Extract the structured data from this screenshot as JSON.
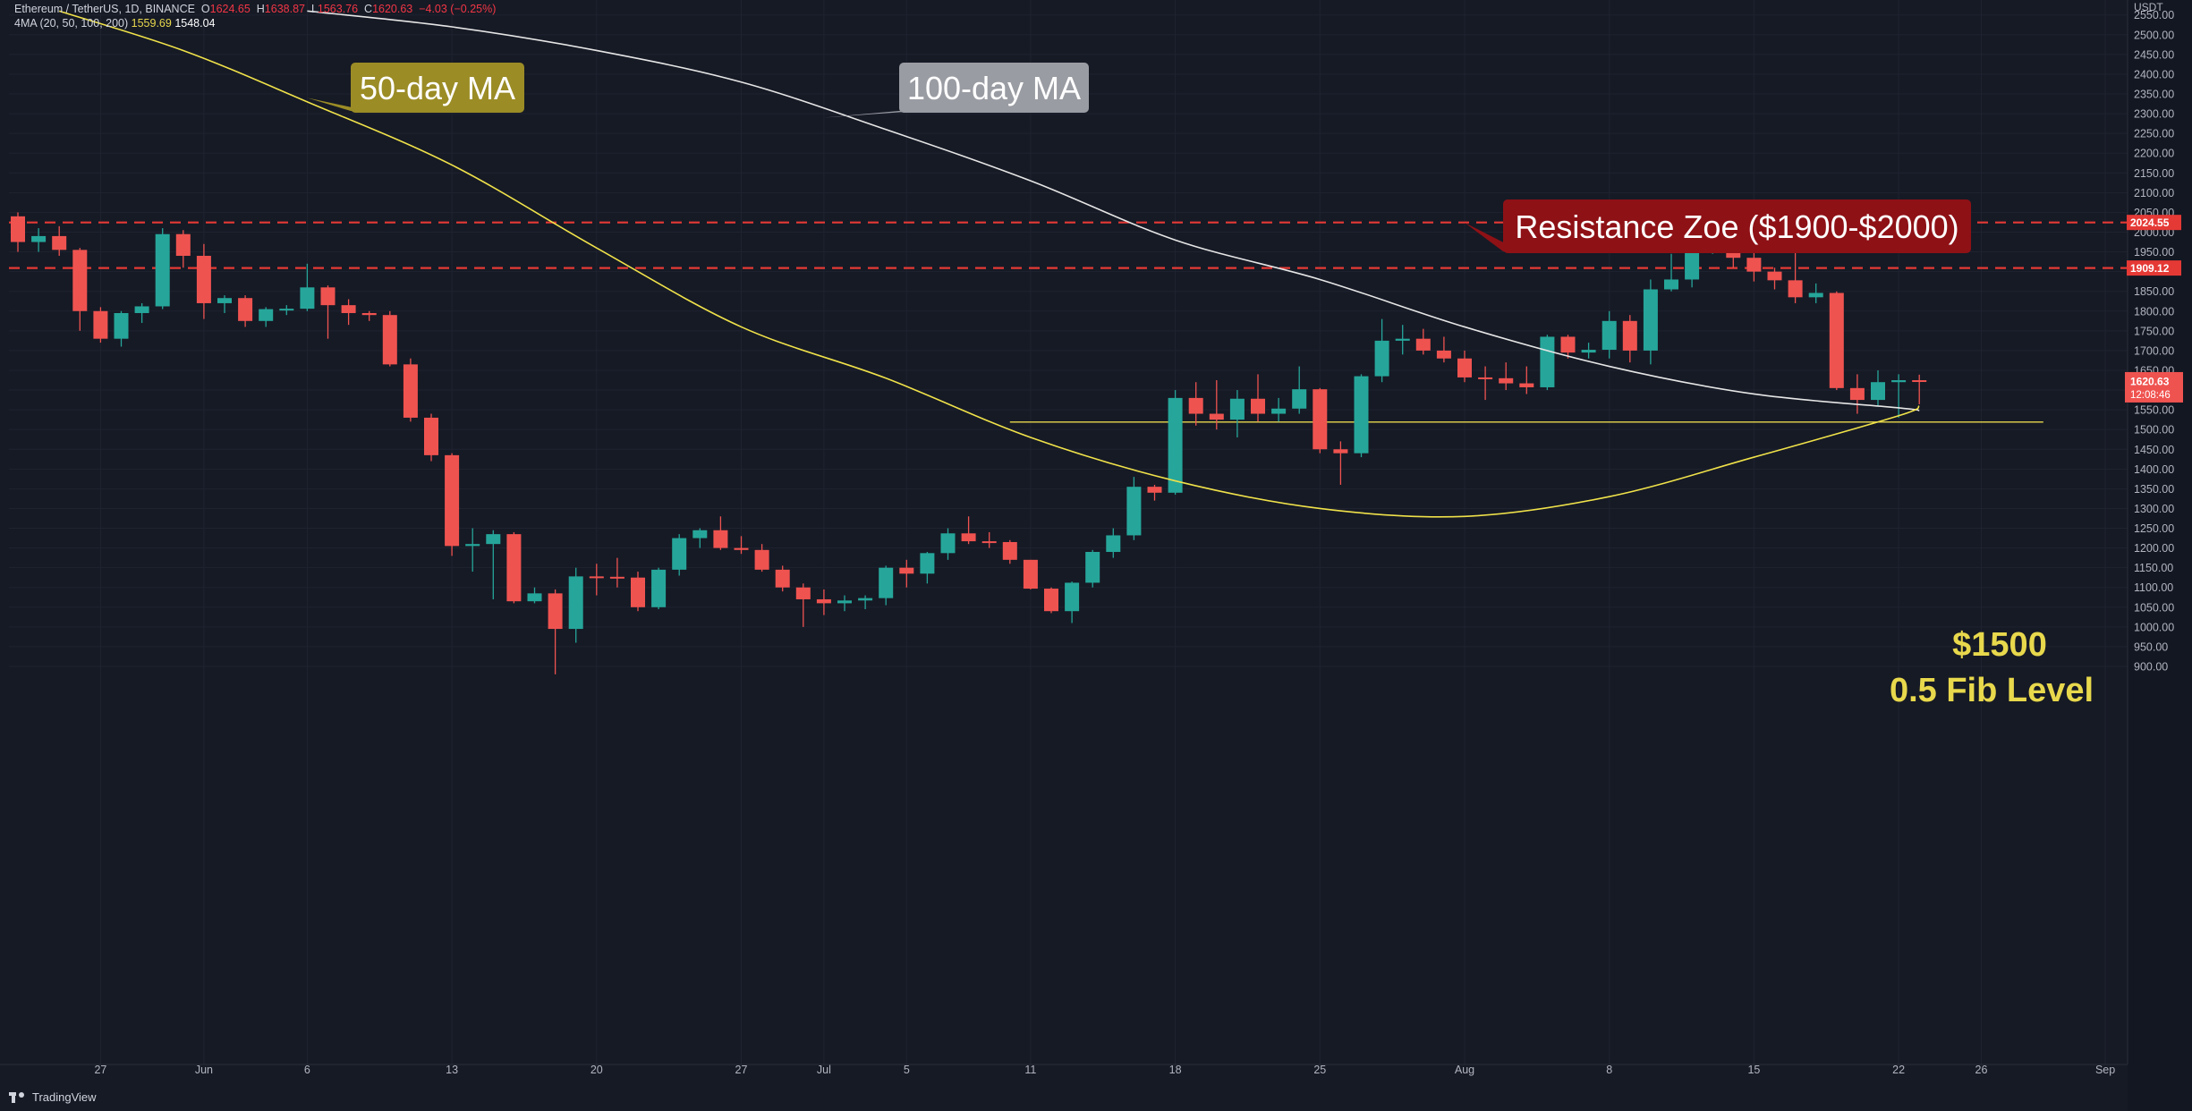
{
  "header": {
    "symbol_line_parts": {
      "symbol": "Ethereum / TetherUS, 1D, BINANCE",
      "o_label": "O",
      "o_value": "1624.65",
      "h_label": "H",
      "h_value": "1638.87",
      "l_label": "L",
      "l_value": "1563.76",
      "c_label": "C",
      "c_value": "1620.63",
      "change": "−4.03 (−0.25%)"
    },
    "indicator_line": {
      "label": "4MA (20, 50, 100, 200)",
      "value1": "1559.69",
      "value2": "1548.04"
    }
  },
  "currency_label": "USDT",
  "branding": "TradingView",
  "colors": {
    "background": "#161a25",
    "up": "#26a69a",
    "down": "#ef5350",
    "ma50": "#f0e24a",
    "ma100": "#e6e6e6",
    "resistance": "#e53935",
    "fib": "#e8d84c",
    "axis_text": "#b2b5be",
    "grid": "#1f2330"
  },
  "chart_data": {
    "type": "candlestick",
    "y_axis": {
      "range": [
        880,
        2560
      ],
      "ticks": [
        900,
        950,
        1000,
        1050,
        1100,
        1150,
        1200,
        1250,
        1300,
        1350,
        1400,
        1450,
        1500,
        1550,
        1600,
        1650,
        1700,
        1750,
        1800,
        1850,
        1900,
        1950,
        2000,
        2050,
        2100,
        2150,
        2200,
        2250,
        2300,
        2350,
        2400,
        2450,
        2500,
        2550
      ],
      "tick_labels": [
        "900.00",
        "950.00",
        "1000.00",
        "1050.00",
        "1100.00",
        "1150.00",
        "1200.00",
        "1250.00",
        "1300.00",
        "1350.00",
        "1400.00",
        "1450.00",
        "1500.00",
        "1550.00",
        "1600.00",
        "1650.00",
        "1700.00",
        "1750.00",
        "1800.00",
        "1850.00",
        "1900.00",
        "1950.00",
        "2000.00",
        "2050.00",
        "2100.00",
        "2150.00",
        "2200.00",
        "2250.00",
        "2300.00",
        "2350.00",
        "2400.00",
        "2450.00",
        "2500.00",
        "2550.00"
      ]
    },
    "x_axis": {
      "range": [
        "2022-05-23",
        "2022-09-03"
      ],
      "tick_dates": [
        "2022-05-27",
        "2022-06-01",
        "2022-06-06",
        "2022-06-13",
        "2022-06-20",
        "2022-06-27",
        "2022-07-01",
        "2022-07-05",
        "2022-07-11",
        "2022-07-18",
        "2022-07-25",
        "2022-08-01",
        "2022-08-08",
        "2022-08-15",
        "2022-08-22",
        "2022-08-26",
        "2022-09-01"
      ],
      "tick_labels": [
        "27",
        "Jun",
        "6",
        "13",
        "20",
        "27",
        "Jul",
        "5",
        "11",
        "18",
        "25",
        "Aug",
        "8",
        "15",
        "22",
        "26",
        "Sep"
      ]
    },
    "candles": [
      {
        "date": "2022-05-23",
        "o": 2040,
        "h": 2050,
        "l": 1950,
        "c": 1975
      },
      {
        "date": "2022-05-24",
        "o": 1975,
        "h": 2010,
        "l": 1950,
        "c": 1990
      },
      {
        "date": "2022-05-25",
        "o": 1990,
        "h": 2015,
        "l": 1940,
        "c": 1955
      },
      {
        "date": "2022-05-26",
        "o": 1955,
        "h": 1960,
        "l": 1750,
        "c": 1800
      },
      {
        "date": "2022-05-27",
        "o": 1800,
        "h": 1810,
        "l": 1720,
        "c": 1730
      },
      {
        "date": "2022-05-28",
        "o": 1730,
        "h": 1800,
        "l": 1710,
        "c": 1795
      },
      {
        "date": "2022-05-29",
        "o": 1795,
        "h": 1820,
        "l": 1770,
        "c": 1812
      },
      {
        "date": "2022-05-30",
        "o": 1812,
        "h": 2010,
        "l": 1805,
        "c": 1995
      },
      {
        "date": "2022-05-31",
        "o": 1995,
        "h": 2005,
        "l": 1910,
        "c": 1940
      },
      {
        "date": "2022-06-01",
        "o": 1940,
        "h": 1970,
        "l": 1780,
        "c": 1820
      },
      {
        "date": "2022-06-02",
        "o": 1820,
        "h": 1840,
        "l": 1795,
        "c": 1833
      },
      {
        "date": "2022-06-03",
        "o": 1833,
        "h": 1840,
        "l": 1760,
        "c": 1775
      },
      {
        "date": "2022-06-04",
        "o": 1775,
        "h": 1810,
        "l": 1760,
        "c": 1805
      },
      {
        "date": "2022-06-05",
        "o": 1805,
        "h": 1815,
        "l": 1790,
        "c": 1806
      },
      {
        "date": "2022-06-06",
        "o": 1806,
        "h": 1920,
        "l": 1800,
        "c": 1860
      },
      {
        "date": "2022-06-07",
        "o": 1860,
        "h": 1865,
        "l": 1730,
        "c": 1815
      },
      {
        "date": "2022-06-08",
        "o": 1815,
        "h": 1830,
        "l": 1765,
        "c": 1795
      },
      {
        "date": "2022-06-09",
        "o": 1795,
        "h": 1800,
        "l": 1775,
        "c": 1790
      },
      {
        "date": "2022-06-10",
        "o": 1790,
        "h": 1800,
        "l": 1660,
        "c": 1665
      },
      {
        "date": "2022-06-11",
        "o": 1665,
        "h": 1680,
        "l": 1520,
        "c": 1530
      },
      {
        "date": "2022-06-12",
        "o": 1530,
        "h": 1540,
        "l": 1420,
        "c": 1435
      },
      {
        "date": "2022-06-13",
        "o": 1435,
        "h": 1440,
        "l": 1180,
        "c": 1205
      },
      {
        "date": "2022-06-14",
        "o": 1205,
        "h": 1250,
        "l": 1140,
        "c": 1210
      },
      {
        "date": "2022-06-15",
        "o": 1210,
        "h": 1245,
        "l": 1070,
        "c": 1235
      },
      {
        "date": "2022-06-16",
        "o": 1235,
        "h": 1240,
        "l": 1060,
        "c": 1065
      },
      {
        "date": "2022-06-17",
        "o": 1065,
        "h": 1100,
        "l": 1060,
        "c": 1085
      },
      {
        "date": "2022-06-18",
        "o": 1085,
        "h": 1095,
        "l": 880,
        "c": 995
      },
      {
        "date": "2022-06-19",
        "o": 995,
        "h": 1150,
        "l": 960,
        "c": 1128
      },
      {
        "date": "2022-06-20",
        "o": 1128,
        "h": 1160,
        "l": 1080,
        "c": 1127
      },
      {
        "date": "2022-06-21",
        "o": 1127,
        "h": 1175,
        "l": 1100,
        "c": 1125
      },
      {
        "date": "2022-06-22",
        "o": 1125,
        "h": 1140,
        "l": 1040,
        "c": 1050
      },
      {
        "date": "2022-06-23",
        "o": 1050,
        "h": 1150,
        "l": 1045,
        "c": 1145
      },
      {
        "date": "2022-06-24",
        "o": 1145,
        "h": 1235,
        "l": 1130,
        "c": 1225
      },
      {
        "date": "2022-06-25",
        "o": 1225,
        "h": 1250,
        "l": 1200,
        "c": 1245
      },
      {
        "date": "2022-06-26",
        "o": 1245,
        "h": 1280,
        "l": 1195,
        "c": 1200
      },
      {
        "date": "2022-06-27",
        "o": 1200,
        "h": 1230,
        "l": 1185,
        "c": 1195
      },
      {
        "date": "2022-06-28",
        "o": 1195,
        "h": 1210,
        "l": 1140,
        "c": 1145
      },
      {
        "date": "2022-06-29",
        "o": 1145,
        "h": 1155,
        "l": 1090,
        "c": 1100
      },
      {
        "date": "2022-06-30",
        "o": 1100,
        "h": 1110,
        "l": 1000,
        "c": 1070
      },
      {
        "date": "2022-07-01",
        "o": 1070,
        "h": 1095,
        "l": 1030,
        "c": 1060
      },
      {
        "date": "2022-07-02",
        "o": 1060,
        "h": 1080,
        "l": 1040,
        "c": 1067
      },
      {
        "date": "2022-07-03",
        "o": 1067,
        "h": 1080,
        "l": 1045,
        "c": 1073
      },
      {
        "date": "2022-07-04",
        "o": 1073,
        "h": 1155,
        "l": 1055,
        "c": 1150
      },
      {
        "date": "2022-07-05",
        "o": 1150,
        "h": 1170,
        "l": 1100,
        "c": 1135
      },
      {
        "date": "2022-07-06",
        "o": 1135,
        "h": 1190,
        "l": 1110,
        "c": 1187
      },
      {
        "date": "2022-07-07",
        "o": 1187,
        "h": 1250,
        "l": 1170,
        "c": 1237
      },
      {
        "date": "2022-07-08",
        "o": 1237,
        "h": 1280,
        "l": 1210,
        "c": 1217
      },
      {
        "date": "2022-07-09",
        "o": 1217,
        "h": 1240,
        "l": 1200,
        "c": 1215
      },
      {
        "date": "2022-07-10",
        "o": 1215,
        "h": 1220,
        "l": 1160,
        "c": 1170
      },
      {
        "date": "2022-07-11",
        "o": 1170,
        "h": 1170,
        "l": 1095,
        "c": 1097
      },
      {
        "date": "2022-07-12",
        "o": 1097,
        "h": 1100,
        "l": 1035,
        "c": 1040
      },
      {
        "date": "2022-07-13",
        "o": 1040,
        "h": 1115,
        "l": 1010,
        "c": 1112
      },
      {
        "date": "2022-07-14",
        "o": 1112,
        "h": 1195,
        "l": 1100,
        "c": 1190
      },
      {
        "date": "2022-07-15",
        "o": 1190,
        "h": 1250,
        "l": 1175,
        "c": 1232
      },
      {
        "date": "2022-07-16",
        "o": 1232,
        "h": 1380,
        "l": 1220,
        "c": 1355
      },
      {
        "date": "2022-07-17",
        "o": 1355,
        "h": 1360,
        "l": 1320,
        "c": 1340
      },
      {
        "date": "2022-07-18",
        "o": 1340,
        "h": 1600,
        "l": 1335,
        "c": 1580
      },
      {
        "date": "2022-07-19",
        "o": 1580,
        "h": 1620,
        "l": 1510,
        "c": 1540
      },
      {
        "date": "2022-07-20",
        "o": 1540,
        "h": 1625,
        "l": 1500,
        "c": 1525
      },
      {
        "date": "2022-07-21",
        "o": 1525,
        "h": 1600,
        "l": 1480,
        "c": 1578
      },
      {
        "date": "2022-07-22",
        "o": 1578,
        "h": 1640,
        "l": 1520,
        "c": 1540
      },
      {
        "date": "2022-07-23",
        "o": 1540,
        "h": 1580,
        "l": 1520,
        "c": 1553
      },
      {
        "date": "2022-07-24",
        "o": 1553,
        "h": 1660,
        "l": 1540,
        "c": 1602
      },
      {
        "date": "2022-07-25",
        "o": 1602,
        "h": 1605,
        "l": 1440,
        "c": 1450
      },
      {
        "date": "2022-07-26",
        "o": 1450,
        "h": 1470,
        "l": 1360,
        "c": 1440
      },
      {
        "date": "2022-07-27",
        "o": 1440,
        "h": 1640,
        "l": 1430,
        "c": 1635
      },
      {
        "date": "2022-07-28",
        "o": 1635,
        "h": 1780,
        "l": 1620,
        "c": 1725
      },
      {
        "date": "2022-07-29",
        "o": 1725,
        "h": 1765,
        "l": 1690,
        "c": 1730
      },
      {
        "date": "2022-07-30",
        "o": 1730,
        "h": 1755,
        "l": 1690,
        "c": 1700
      },
      {
        "date": "2022-07-31",
        "o": 1700,
        "h": 1735,
        "l": 1670,
        "c": 1680
      },
      {
        "date": "2022-08-01",
        "o": 1680,
        "h": 1700,
        "l": 1620,
        "c": 1632
      },
      {
        "date": "2022-08-02",
        "o": 1632,
        "h": 1660,
        "l": 1575,
        "c": 1630
      },
      {
        "date": "2022-08-03",
        "o": 1630,
        "h": 1670,
        "l": 1600,
        "c": 1617
      },
      {
        "date": "2022-08-04",
        "o": 1617,
        "h": 1660,
        "l": 1590,
        "c": 1607
      },
      {
        "date": "2022-08-05",
        "o": 1607,
        "h": 1740,
        "l": 1600,
        "c": 1735
      },
      {
        "date": "2022-08-06",
        "o": 1735,
        "h": 1740,
        "l": 1680,
        "c": 1695
      },
      {
        "date": "2022-08-07",
        "o": 1695,
        "h": 1720,
        "l": 1680,
        "c": 1702
      },
      {
        "date": "2022-08-08",
        "o": 1702,
        "h": 1800,
        "l": 1680,
        "c": 1775
      },
      {
        "date": "2022-08-09",
        "o": 1775,
        "h": 1790,
        "l": 1670,
        "c": 1700
      },
      {
        "date": "2022-08-10",
        "o": 1700,
        "h": 1880,
        "l": 1665,
        "c": 1855
      },
      {
        "date": "2022-08-11",
        "o": 1855,
        "h": 1945,
        "l": 1850,
        "c": 1880
      },
      {
        "date": "2022-08-12",
        "o": 1880,
        "h": 1960,
        "l": 1860,
        "c": 1955
      },
      {
        "date": "2022-08-13",
        "o": 1955,
        "h": 2025,
        "l": 1945,
        "c": 1985
      },
      {
        "date": "2022-08-14",
        "o": 1985,
        "h": 2030,
        "l": 1910,
        "c": 1935
      },
      {
        "date": "2022-08-15",
        "o": 1935,
        "h": 2010,
        "l": 1875,
        "c": 1900
      },
      {
        "date": "2022-08-16",
        "o": 1900,
        "h": 1910,
        "l": 1855,
        "c": 1878
      },
      {
        "date": "2022-08-17",
        "o": 1878,
        "h": 1960,
        "l": 1820,
        "c": 1835
      },
      {
        "date": "2022-08-18",
        "o": 1835,
        "h": 1870,
        "l": 1820,
        "c": 1846
      },
      {
        "date": "2022-08-19",
        "o": 1846,
        "h": 1850,
        "l": 1600,
        "c": 1605
      },
      {
        "date": "2022-08-20",
        "o": 1605,
        "h": 1640,
        "l": 1540,
        "c": 1575
      },
      {
        "date": "2022-08-21",
        "o": 1575,
        "h": 1650,
        "l": 1560,
        "c": 1620
      },
      {
        "date": "2022-08-22",
        "o": 1620,
        "h": 1640,
        "l": 1530,
        "c": 1625
      },
      {
        "date": "2022-08-23",
        "o": 1625,
        "h": 1639,
        "l": 1564,
        "c": 1621
      }
    ],
    "ma50": {
      "name": "50-day MA",
      "points": [
        [
          "2022-05-25",
          2560
        ],
        [
          "2022-05-31",
          2460
        ],
        [
          "2022-06-06",
          2330
        ],
        [
          "2022-06-13",
          2170
        ],
        [
          "2022-06-20",
          1960
        ],
        [
          "2022-06-27",
          1760
        ],
        [
          "2022-07-04",
          1630
        ],
        [
          "2022-07-11",
          1480
        ],
        [
          "2022-07-18",
          1370
        ],
        [
          "2022-07-25",
          1300
        ],
        [
          "2022-08-01",
          1280
        ],
        [
          "2022-08-08",
          1330
        ],
        [
          "2022-08-15",
          1430
        ],
        [
          "2022-08-22",
          1535
        ],
        [
          "2022-08-23",
          1559.69
        ]
      ]
    },
    "ma100": {
      "name": "100-day MA",
      "points": [
        [
          "2022-06-06",
          2560
        ],
        [
          "2022-06-13",
          2520
        ],
        [
          "2022-06-20",
          2460
        ],
        [
          "2022-06-27",
          2380
        ],
        [
          "2022-07-04",
          2260
        ],
        [
          "2022-07-11",
          2130
        ],
        [
          "2022-07-18",
          1980
        ],
        [
          "2022-07-25",
          1880
        ],
        [
          "2022-08-01",
          1760
        ],
        [
          "2022-08-08",
          1660
        ],
        [
          "2022-08-15",
          1590
        ],
        [
          "2022-08-22",
          1555
        ],
        [
          "2022-08-23",
          1548.04
        ]
      ]
    },
    "resistance_lines": [
      {
        "value": 2024.55,
        "label": "2024.55"
      },
      {
        "value": 1909.12,
        "label": "1909.12"
      }
    ],
    "fib_line": {
      "value": 1519,
      "start": "2022-07-10",
      "end": "2022-08-29"
    },
    "last_price": {
      "value": 1620.63,
      "label": "1620.63",
      "countdown": "12:08:46"
    },
    "annotations": [
      {
        "id": "ma50",
        "text": "50-day MA",
        "anchor_date": "2022-06-06",
        "anchor_value": 2340
      },
      {
        "id": "ma100",
        "text": "100-day MA",
        "anchor_date": "2022-07-01",
        "anchor_value": 2290
      },
      {
        "id": "resistance",
        "text": "Resistance Zoe ($1900-$2000)",
        "anchor_date": "2022-08-01",
        "anchor_value": 2024
      },
      {
        "id": "fib_price",
        "text": "$1500"
      },
      {
        "id": "fib_level",
        "text": "0.5 Fib Level"
      }
    ]
  }
}
